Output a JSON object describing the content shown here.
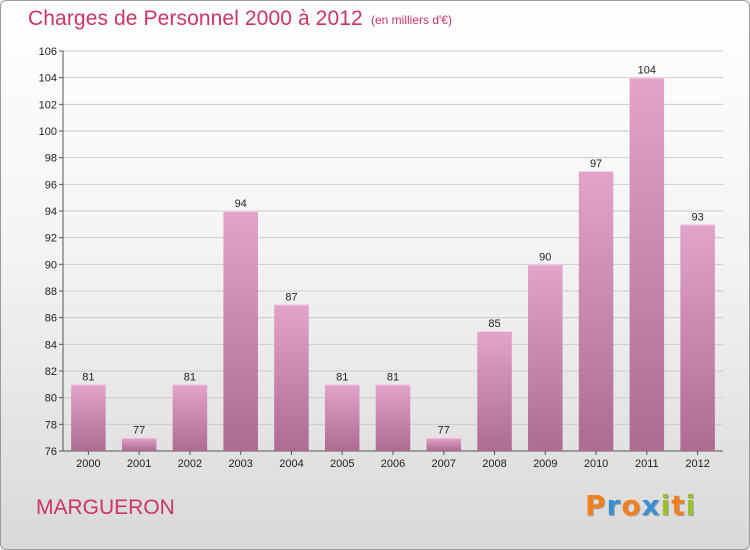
{
  "title": "Charges de Personnel 2000 à 2012",
  "subtitle": "(en milliers d'€)",
  "commune": "MARGUERON",
  "logo": {
    "text": "Proxiti",
    "letters": [
      {
        "ch": "P",
        "color": "#f08020"
      },
      {
        "ch": "r",
        "color": "#3a8fd0"
      },
      {
        "ch": "o",
        "color": "#f08020"
      },
      {
        "ch": "x",
        "color": "#3a8fd0"
      },
      {
        "ch": "i",
        "color": "#9ac030"
      },
      {
        "ch": "t",
        "color": "#f08020"
      },
      {
        "ch": "i",
        "color": "#9ac030"
      }
    ]
  },
  "colors": {
    "accent": "#cc3366",
    "bar_top": "#e3a4c9",
    "bar_bottom": "#ad6b93",
    "grid": "#cccccc"
  },
  "chart_data": {
    "type": "bar",
    "title": "Charges de Personnel 2000 à 2012",
    "subtitle": "(en milliers d'€)",
    "categories": [
      "2000",
      "2001",
      "2002",
      "2003",
      "2004",
      "2005",
      "2006",
      "2007",
      "2008",
      "2009",
      "2010",
      "2011",
      "2012"
    ],
    "values": [
      81,
      77,
      81,
      94,
      87,
      81,
      81,
      77,
      85,
      90,
      97,
      104,
      93
    ],
    "ylim": [
      76,
      106
    ],
    "yticks": [
      76,
      78,
      80,
      82,
      84,
      86,
      88,
      90,
      92,
      94,
      96,
      98,
      100,
      102,
      104,
      106
    ],
    "grid": true
  }
}
